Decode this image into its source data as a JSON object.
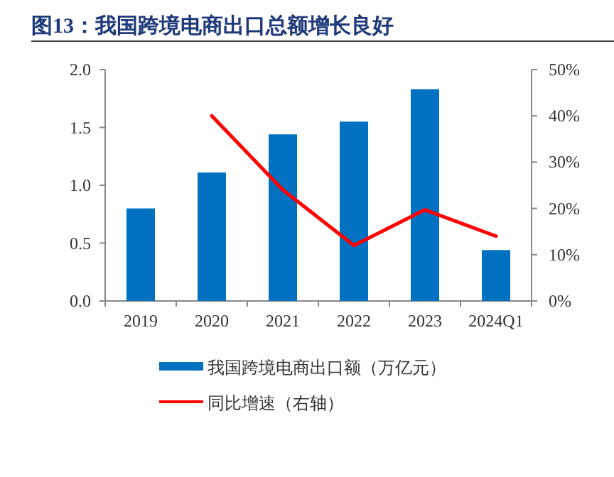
{
  "chart_data": {
    "type": "bar",
    "title": "图13：我国跨境电商出口总额增长良好",
    "categories": [
      "2019",
      "2020",
      "2021",
      "2022",
      "2023",
      "2024Q1"
    ],
    "series": [
      {
        "name": "我国跨境电商出口额（万亿元）",
        "color": "#0070c0",
        "values": [
          0.8,
          1.11,
          1.44,
          1.55,
          1.83,
          0.44
        ]
      },
      {
        "name": "同比增速（右轴）",
        "type": "line",
        "axis": "y2",
        "color": "#ff0000",
        "values": [
          null,
          40,
          24,
          12,
          19.7,
          14
        ]
      }
    ],
    "ylim": [
      0,
      2.0
    ],
    "yticks": [
      {
        "value": 0,
        "label": "0.0"
      },
      {
        "value": 0.5,
        "label": "0.5"
      },
      {
        "value": 1.0,
        "label": "1.0"
      },
      {
        "value": 1.5,
        "label": "1.5"
      },
      {
        "value": 2.0,
        "label": "2.0"
      }
    ],
    "y2lim": [
      0,
      50
    ],
    "y2ticks": [
      {
        "value": 0,
        "label": "0%"
      },
      {
        "value": 10,
        "label": "10%"
      },
      {
        "value": 20,
        "label": "20%"
      },
      {
        "value": 30,
        "label": "30%"
      },
      {
        "value": 40,
        "label": "40%"
      },
      {
        "value": 50,
        "label": "50%"
      }
    ],
    "grid": false,
    "legend": "bottom"
  }
}
